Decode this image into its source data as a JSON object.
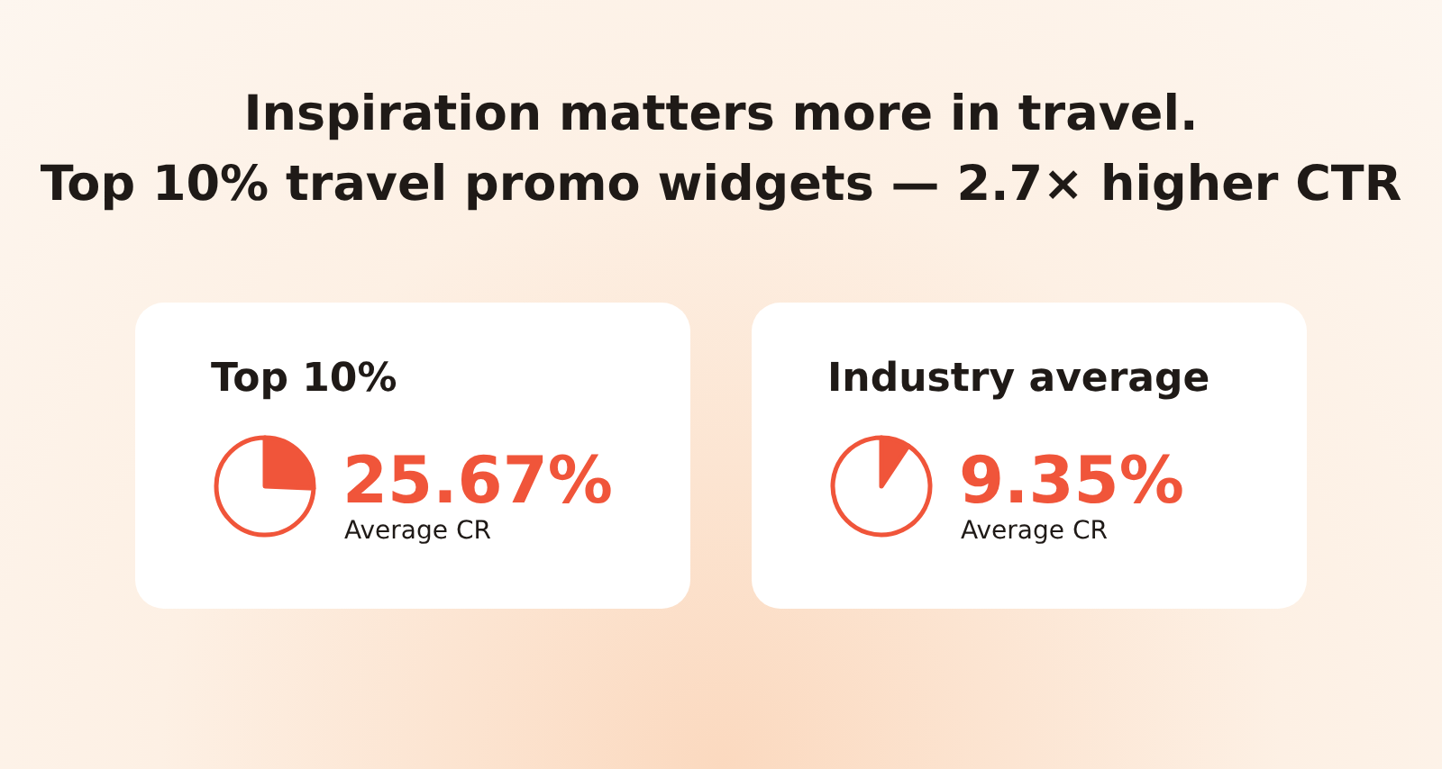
{
  "chart_data": [
    {
      "type": "other",
      "title": "Inspiration matters more in travel.",
      "subtitle": "Top 10% travel promo widgets — 2.7× higher CTR"
    },
    {
      "type": "pie",
      "title": "Top 10%",
      "categories": [
        null,
        null
      ],
      "values": [
        25.67,
        74.33
      ],
      "colors": [
        "#f0553a",
        "#ffffff"
      ],
      "value_labels": [
        "25.67%",
        null
      ],
      "annotations": [
        "Average CR"
      ]
    },
    {
      "type": "pie",
      "title": "Industry average",
      "categories": [
        null,
        null
      ],
      "values": [
        9.35,
        90.65
      ],
      "colors": [
        "#f0553a",
        "#ffffff"
      ],
      "value_labels": [
        "9.35%",
        null
      ],
      "annotations": [
        "Average CR"
      ]
    }
  ]
}
